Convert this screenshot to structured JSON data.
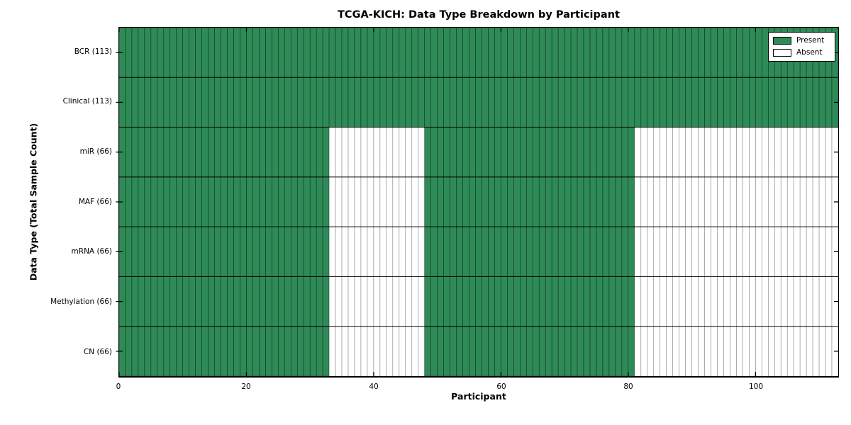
{
  "chart_data": {
    "type": "heatmap",
    "title": "TCGA-KICH: Data Type Breakdown by Participant",
    "xlabel": "Participant",
    "ylabel": "Data Type (Total Sample Count)",
    "x_range": [
      0,
      113
    ],
    "n_participants": 113,
    "x_ticks": [
      0,
      20,
      40,
      60,
      80,
      100
    ],
    "grid": "cell-borders",
    "rows": [
      {
        "label": "BCR (113)",
        "present_count": 113,
        "present_ranges": [
          [
            0,
            113
          ]
        ]
      },
      {
        "label": "Clinical (113)",
        "present_count": 113,
        "present_ranges": [
          [
            0,
            113
          ]
        ]
      },
      {
        "label": "miR (66)",
        "present_count": 66,
        "present_ranges": [
          [
            0,
            33
          ],
          [
            48,
            81
          ]
        ]
      },
      {
        "label": "MAF (66)",
        "present_count": 66,
        "present_ranges": [
          [
            0,
            33
          ],
          [
            48,
            81
          ]
        ]
      },
      {
        "label": "mRNA (66)",
        "present_count": 66,
        "present_ranges": [
          [
            0,
            33
          ],
          [
            48,
            81
          ]
        ]
      },
      {
        "label": "Methylation (66)",
        "present_count": 66,
        "present_ranges": [
          [
            0,
            33
          ],
          [
            48,
            81
          ]
        ]
      },
      {
        "label": "CN (66)",
        "present_count": 66,
        "present_ranges": [
          [
            0,
            33
          ],
          [
            48,
            81
          ]
        ]
      }
    ],
    "legend": {
      "position": "upper right",
      "entries": [
        {
          "label": "Present",
          "color": "#2e8b57"
        },
        {
          "label": "Absent",
          "color": "#ffffff"
        }
      ]
    },
    "colors": {
      "present": "#2e8b57",
      "absent": "#ffffff",
      "cell_edge": "#000000",
      "axis": "#000000"
    }
  }
}
